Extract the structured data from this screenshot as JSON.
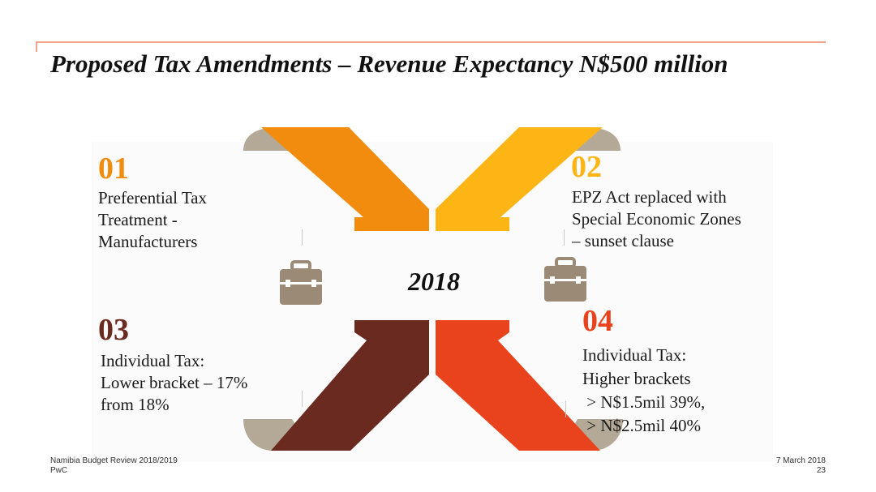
{
  "slide": {
    "title": "Proposed Tax Amendments – Revenue Expectancy N$500 million",
    "center_label": "2018"
  },
  "items": [
    {
      "number": "01",
      "lines": [
        "Preferential Tax",
        "Treatment -",
        "Manufacturers"
      ],
      "color": "#f28c0f"
    },
    {
      "number": "02",
      "lines": [
        "EPZ Act replaced with",
        "Special Economic Zones",
        "– sunset clause"
      ],
      "color": "#fdb515"
    },
    {
      "number": "03",
      "lines": [
        "Individual Tax:",
        "Lower bracket – 17%",
        "from 18%"
      ],
      "color": "#6b2a1f"
    },
    {
      "number": "04",
      "lines": [
        "Individual Tax:",
        "Higher brackets",
        " > N$1.5mil 39%,",
        " > N$2.5mil 40%"
      ],
      "color": "#e8431d"
    }
  ],
  "footer": {
    "report": "Namibia Budget Review 2018/2019",
    "company": "PwC",
    "date": "7 March 2018",
    "page": "23"
  },
  "colors": {
    "curl": "#b4a896",
    "briefcase": "#9a8a76",
    "rule": "#f0a58c"
  },
  "icons": [
    "briefcase-icon",
    "briefcase-icon"
  ]
}
